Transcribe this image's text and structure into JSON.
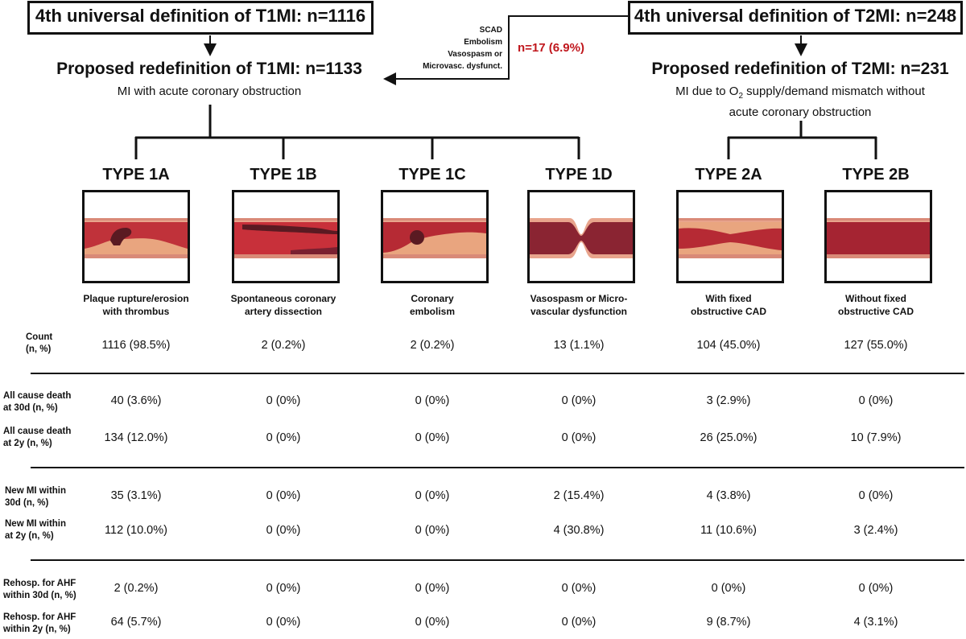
{
  "colors": {
    "vessel_wall": "#e8a48c",
    "lumen": "#c0323a",
    "thrombus": "#5a1a22",
    "plaque": "#e9a57f",
    "red_text": "#c0171d"
  },
  "top": {
    "t1mi_box": "4th universal definition of T1MI: n=1116",
    "t2mi_box": "4th universal definition of T2MI: n=248",
    "t1_redef_title": "Proposed redefinition of T1MI: n=1133",
    "t1_redef_sub": "MI with acute coronary obstruction",
    "t2_redef_title": "Proposed redefinition of T2MI: n=231",
    "t2_redef_sub_1": "MI due to O",
    "t2_redef_sub_sub": "2",
    "t2_redef_sub_2": " supply/demand mismatch without",
    "t2_redef_sub_3": "acute coronary obstruction",
    "reclass_causes": [
      "SCAD",
      "Embolism",
      "Vasospasm or",
      "Microvasc. dysfunct."
    ],
    "reclass_count": "n=17 (6.9%)"
  },
  "types": [
    {
      "name": "TYPE 1A",
      "caption": [
        "Plaque rupture/erosion",
        "with thrombus"
      ],
      "icon": "plaque-rupture-thrombus"
    },
    {
      "name": "TYPE 1B",
      "caption": [
        "Spontaneous coronary",
        "artery dissection"
      ],
      "icon": "coronary-dissection"
    },
    {
      "name": "TYPE 1C",
      "caption": [
        "Coronary",
        "embolism"
      ],
      "icon": "coronary-embolism"
    },
    {
      "name": "TYPE 1D",
      "caption": [
        "Vasospasm or Micro-",
        "vascular dysfunction"
      ],
      "icon": "vasospasm"
    },
    {
      "name": "TYPE 2A",
      "caption": [
        "With fixed",
        "obstructive CAD"
      ],
      "icon": "fixed-obstructive-cad"
    },
    {
      "name": "TYPE 2B",
      "caption": [
        "Without fixed",
        "obstructive CAD"
      ],
      "icon": "normal-artery"
    }
  ],
  "rows": [
    {
      "label": [
        "Count",
        "(n, %)"
      ],
      "values": [
        "1116 (98.5%)",
        "2 (0.2%)",
        "2 (0.2%)",
        "13 (1.1%)",
        "104 (45.0%)",
        "127 (55.0%)"
      ]
    },
    {
      "label": [
        "All cause death",
        "at 30d (n, %)"
      ],
      "values": [
        "40 (3.6%)",
        "0 (0%)",
        "0 (0%)",
        "0 (0%)",
        "3 (2.9%)",
        "0 (0%)"
      ]
    },
    {
      "label": [
        "All cause death",
        "at 2y (n, %)"
      ],
      "values": [
        "134 (12.0%)",
        "0 (0%)",
        "0 (0%)",
        "0 (0%)",
        "26 (25.0%)",
        "10 (7.9%)"
      ]
    },
    {
      "label": [
        "New MI within",
        "30d (n, %)"
      ],
      "values": [
        "35 (3.1%)",
        "0 (0%)",
        "0 (0%)",
        "2 (15.4%)",
        "4 (3.8%)",
        "0 (0%)"
      ]
    },
    {
      "label": [
        "New MI within",
        "at 2y (n, %)"
      ],
      "values": [
        "112 (10.0%)",
        "0 (0%)",
        "0 (0%)",
        "4 (30.8%)",
        "11 (10.6%)",
        "3 (2.4%)"
      ]
    },
    {
      "label": [
        "Rehosp. for AHF",
        "within 30d (n, %)"
      ],
      "values": [
        "2 (0.2%)",
        "0 (0%)",
        "0 (0%)",
        "0 (0%)",
        "0 (0%)",
        "0 (0%)"
      ]
    },
    {
      "label": [
        "Rehosp. for AHF",
        "within 2y (n, %)"
      ],
      "values": [
        "64 (5.7%)",
        "0 (0%)",
        "0 (0%)",
        "0 (0%)",
        "9 (8.7%)",
        "4 (3.1%)"
      ]
    }
  ]
}
